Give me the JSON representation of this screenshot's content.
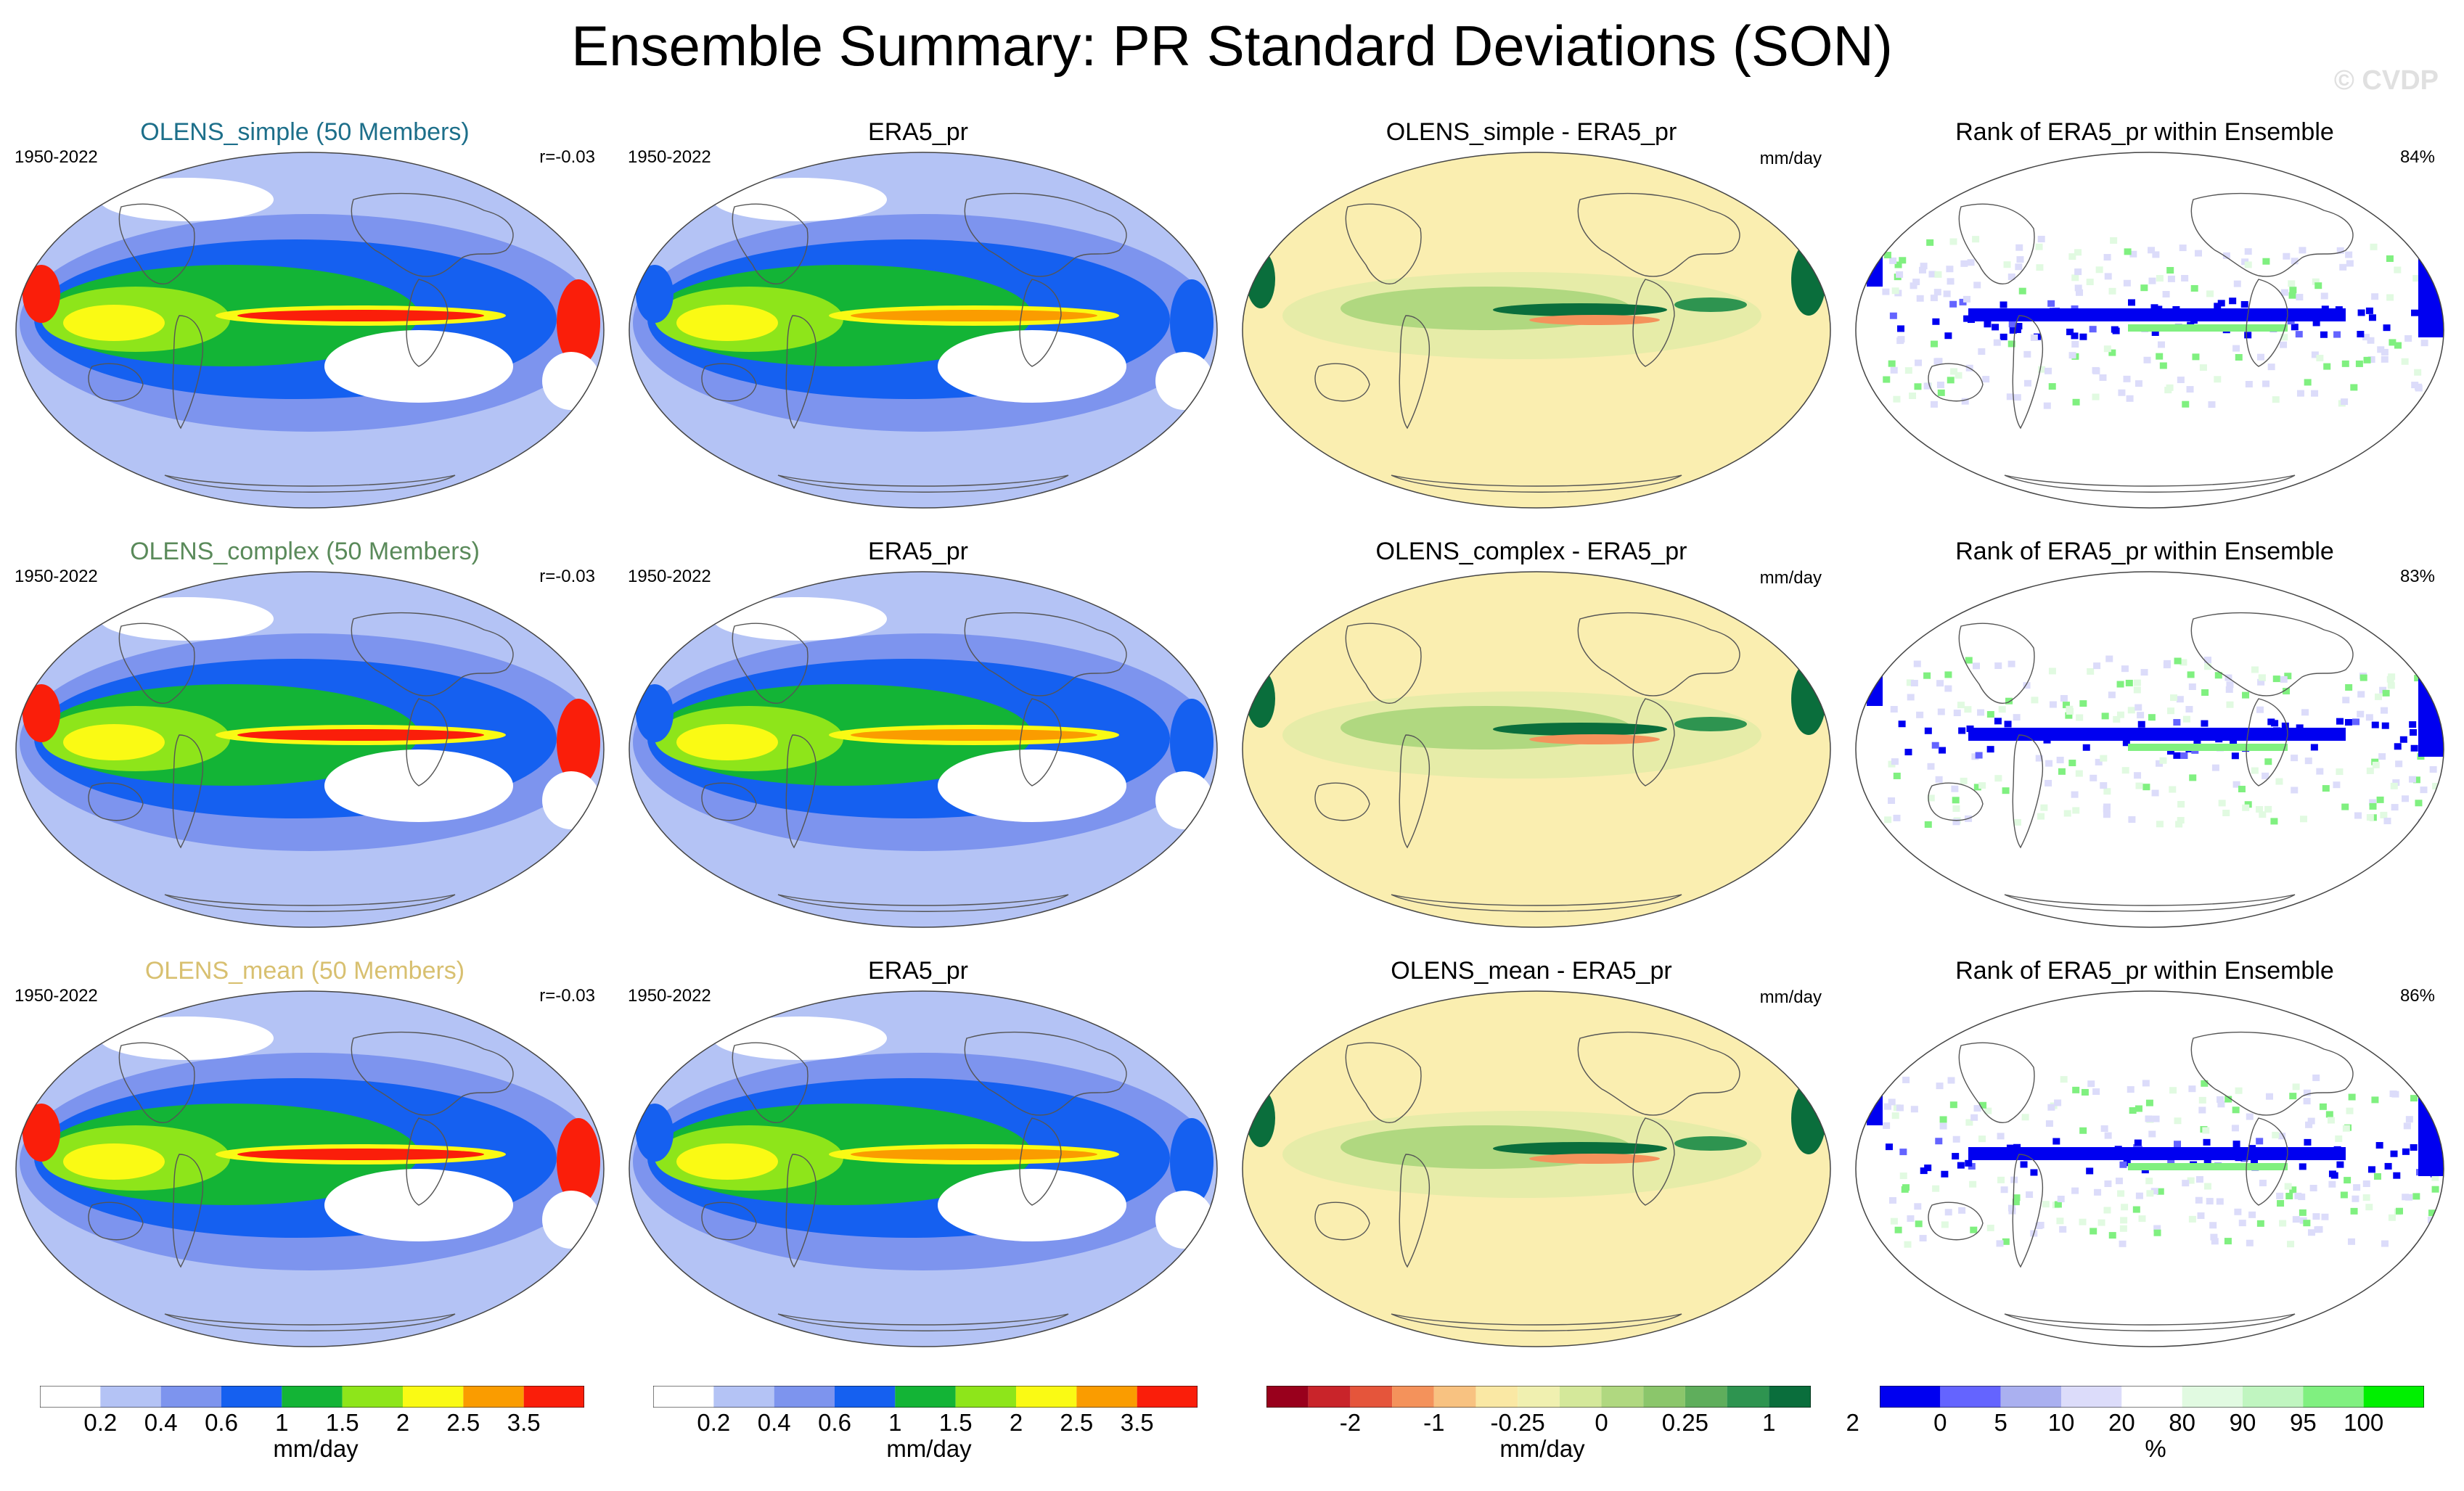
{
  "title": "Ensemble Summary: PR Standard Deviations (SON)",
  "watermark": "© CVDP",
  "colors": {
    "simple": "#1d6f8a",
    "complex": "#5a8a5a",
    "mean": "#d8c070"
  },
  "rows": [
    {
      "model": {
        "title": "OLENS_simple (50 Members)",
        "years": "1950-2022",
        "r": "r=-0.03"
      },
      "obs": {
        "title": "ERA5_pr",
        "years": "1950-2022"
      },
      "diff": {
        "title": "OLENS_simple - ERA5_pr",
        "units": "mm/day"
      },
      "rank": {
        "title": "Rank of ERA5_pr within Ensemble",
        "pct": "84%"
      }
    },
    {
      "model": {
        "title": "OLENS_complex (50 Members)",
        "years": "1950-2022",
        "r": "r=-0.03"
      },
      "obs": {
        "title": "ERA5_pr",
        "years": "1950-2022"
      },
      "diff": {
        "title": "OLENS_complex - ERA5_pr",
        "units": "mm/day"
      },
      "rank": {
        "title": "Rank of ERA5_pr within Ensemble",
        "pct": "83%"
      }
    },
    {
      "model": {
        "title": "OLENS_mean (50 Members)",
        "years": "1950-2022",
        "r": "r=-0.03"
      },
      "obs": {
        "title": "ERA5_pr",
        "years": "1950-2022"
      },
      "diff": {
        "title": "OLENS_mean - ERA5_pr",
        "units": "mm/day"
      },
      "rank": {
        "title": "Rank of ERA5_pr within Ensemble",
        "pct": "86%"
      }
    }
  ],
  "colorbars": [
    {
      "units": "mm/day",
      "colors": [
        "#ffffff",
        "#b4c3f5",
        "#7d94ee",
        "#1560f0",
        "#13b436",
        "#8ee51a",
        "#fafa14",
        "#fa9c00",
        "#fa1e0a"
      ],
      "labels": [
        "0.2",
        "0.4",
        "0.6",
        "1",
        "1.5",
        "2",
        "2.5",
        "3.5"
      ]
    },
    {
      "units": "mm/day",
      "colors": [
        "#ffffff",
        "#b4c3f5",
        "#7d94ee",
        "#1560f0",
        "#13b436",
        "#8ee51a",
        "#fafa14",
        "#fa9c00",
        "#fa1e0a"
      ],
      "labels": [
        "0.2",
        "0.4",
        "0.6",
        "1",
        "1.5",
        "2",
        "2.5",
        "3.5"
      ]
    },
    {
      "units": "mm/day",
      "colors": [
        "#99001c",
        "#c9242a",
        "#e5553b",
        "#f4925b",
        "#f8c281",
        "#fae8a4",
        "#f0f0b0",
        "#d4e89a",
        "#b0d880",
        "#8bc66b",
        "#5fae5c",
        "#2e9450",
        "#0a6e3c"
      ],
      "labels": [
        "-2",
        "-1",
        "-0.25",
        "0",
        "0.25",
        "1",
        "2"
      ]
    },
    {
      "units": "%",
      "colors": [
        "#0000f0",
        "#6464ff",
        "#aab0f0",
        "#dcdcfa",
        "#ffffff",
        "#e1fae1",
        "#c0f5c0",
        "#80f080",
        "#00f000"
      ],
      "labels": [
        "0",
        "5",
        "10",
        "20",
        "80",
        "90",
        "95",
        "100"
      ]
    }
  ]
}
